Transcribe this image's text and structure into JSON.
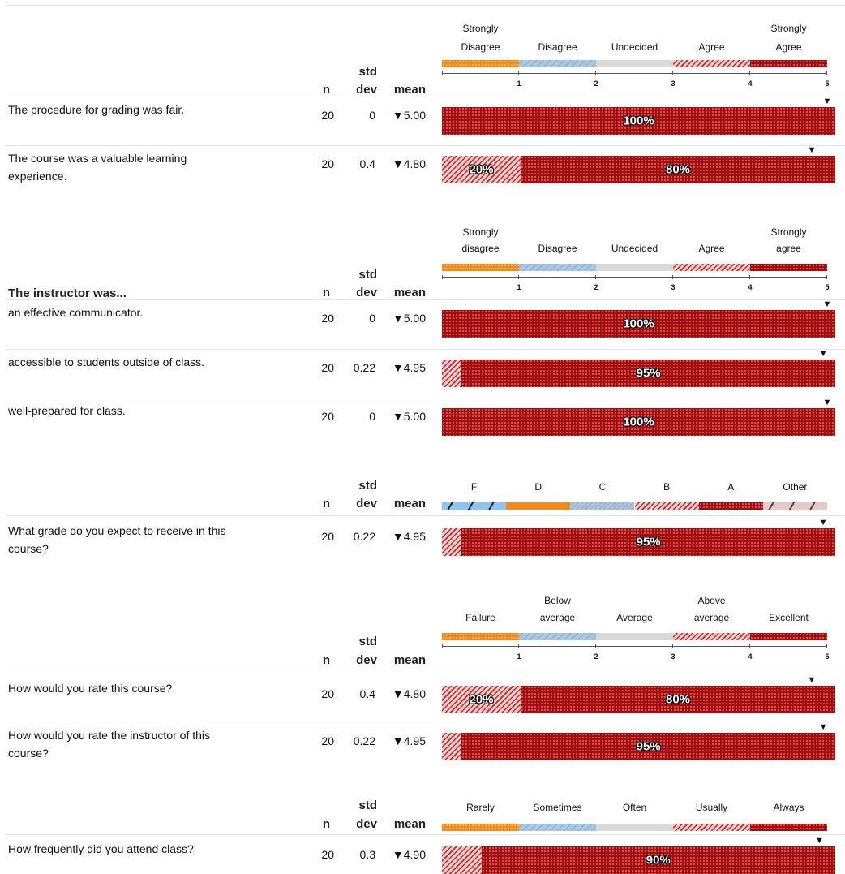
{
  "columns": {
    "n": "n",
    "std_top": "std",
    "std_bottom": "dev",
    "mean": "mean"
  },
  "section_title": "The instructor was...",
  "chart_data": [
    {
      "type": "bar",
      "scale_labels": [
        [
          "Strongly",
          "Disagree"
        ],
        [
          "",
          "Disagree"
        ],
        [
          "",
          "Undecided"
        ],
        [
          "",
          "Agree"
        ],
        [
          "Strongly",
          "Agree"
        ]
      ],
      "axis_ticks": [
        "1",
        "2",
        "3",
        "4",
        "5"
      ],
      "items": [
        {
          "label": [
            "The procedure for grading was fair."
          ],
          "n": "20",
          "std": "0",
          "mean": "▼5.00",
          "mean_value": 5.0,
          "segments": [
            {
              "category": "Strongly Agree",
              "pct": 100,
              "label": "100%"
            }
          ]
        },
        {
          "label": [
            "The course was a valuable learning",
            "experience."
          ],
          "n": "20",
          "std": "0.4",
          "mean": "▼4.80",
          "mean_value": 4.8,
          "segments": [
            {
              "category": "Agree",
              "pct": 20,
              "label": "20%"
            },
            {
              "category": "Strongly Agree",
              "pct": 80,
              "label": "80%"
            }
          ]
        }
      ]
    },
    {
      "type": "bar",
      "scale_labels": [
        [
          "Strongly",
          "disagree"
        ],
        [
          "",
          "Disagree"
        ],
        [
          "",
          "Undecided"
        ],
        [
          "",
          "Agree"
        ],
        [
          "Strongly",
          "agree"
        ]
      ],
      "axis_ticks": [
        "1",
        "2",
        "3",
        "4",
        "5"
      ],
      "items": [
        {
          "label": [
            "an effective communicator."
          ],
          "n": "20",
          "std": "0",
          "mean": "▼5.00",
          "mean_value": 5.0,
          "segments": [
            {
              "category": "Strongly agree",
              "pct": 100,
              "label": "100%"
            }
          ]
        },
        {
          "label": [
            "accessible to students outside of class."
          ],
          "n": "20",
          "std": "0.22",
          "mean": "▼4.95",
          "mean_value": 4.95,
          "segments": [
            {
              "category": "Agree",
              "pct": 5,
              "label": ""
            },
            {
              "category": "Strongly agree",
              "pct": 95,
              "label": "95%"
            }
          ]
        },
        {
          "label": [
            "well-prepared for class."
          ],
          "n": "20",
          "std": "0",
          "mean": "▼5.00",
          "mean_value": 5.0,
          "segments": [
            {
              "category": "Strongly agree",
              "pct": 100,
              "label": "100%"
            }
          ]
        }
      ]
    },
    {
      "type": "bar",
      "scale_labels": [
        [
          "",
          "F"
        ],
        [
          "",
          "D"
        ],
        [
          "",
          "C"
        ],
        [
          "",
          "B"
        ],
        [
          "",
          "A"
        ],
        [
          "",
          "Other"
        ]
      ],
      "axis_ticks": [],
      "items": [
        {
          "label": [
            "What grade do you expect to receive in this",
            "course?"
          ],
          "n": "20",
          "std": "0.22",
          "mean": "▼4.95",
          "mean_value": 4.95,
          "segments": [
            {
              "category": "B",
              "pct": 5,
              "label": ""
            },
            {
              "category": "A",
              "pct": 95,
              "label": "95%"
            }
          ]
        }
      ]
    },
    {
      "type": "bar",
      "scale_labels": [
        [
          "",
          "Failure"
        ],
        [
          "Below",
          "average"
        ],
        [
          "",
          "Average"
        ],
        [
          "Above",
          "average"
        ],
        [
          "",
          "Excellent"
        ]
      ],
      "axis_ticks": [
        "1",
        "2",
        "3",
        "4",
        "5"
      ],
      "items": [
        {
          "label": [
            "How would you rate this course?"
          ],
          "n": "20",
          "std": "0.4",
          "mean": "▼4.80",
          "mean_value": 4.8,
          "segments": [
            {
              "category": "Above average",
              "pct": 20,
              "label": "20%"
            },
            {
              "category": "Excellent",
              "pct": 80,
              "label": "80%"
            }
          ]
        },
        {
          "label": [
            "How would you rate the instructor of this",
            "course?"
          ],
          "n": "20",
          "std": "0.22",
          "mean": "▼4.95",
          "mean_value": 4.95,
          "segments": [
            {
              "category": "Above average",
              "pct": 5,
              "label": ""
            },
            {
              "category": "Excellent",
              "pct": 95,
              "label": "95%"
            }
          ]
        }
      ]
    },
    {
      "type": "bar",
      "scale_labels": [
        [
          "",
          "Rarely"
        ],
        [
          "",
          "Sometimes"
        ],
        [
          "",
          "Often"
        ],
        [
          "",
          "Usually"
        ],
        [
          "",
          "Always"
        ]
      ],
      "axis_ticks": [],
      "items": [
        {
          "label": [
            "How frequently did you attend class?"
          ],
          "n": "20",
          "std": "0.3",
          "mean": "▼4.90",
          "mean_value": 4.9,
          "segments": [
            {
              "category": "Usually",
              "pct": 10,
              "label": ""
            },
            {
              "category": "Always",
              "pct": 90,
              "label": "90%"
            }
          ]
        }
      ]
    }
  ]
}
